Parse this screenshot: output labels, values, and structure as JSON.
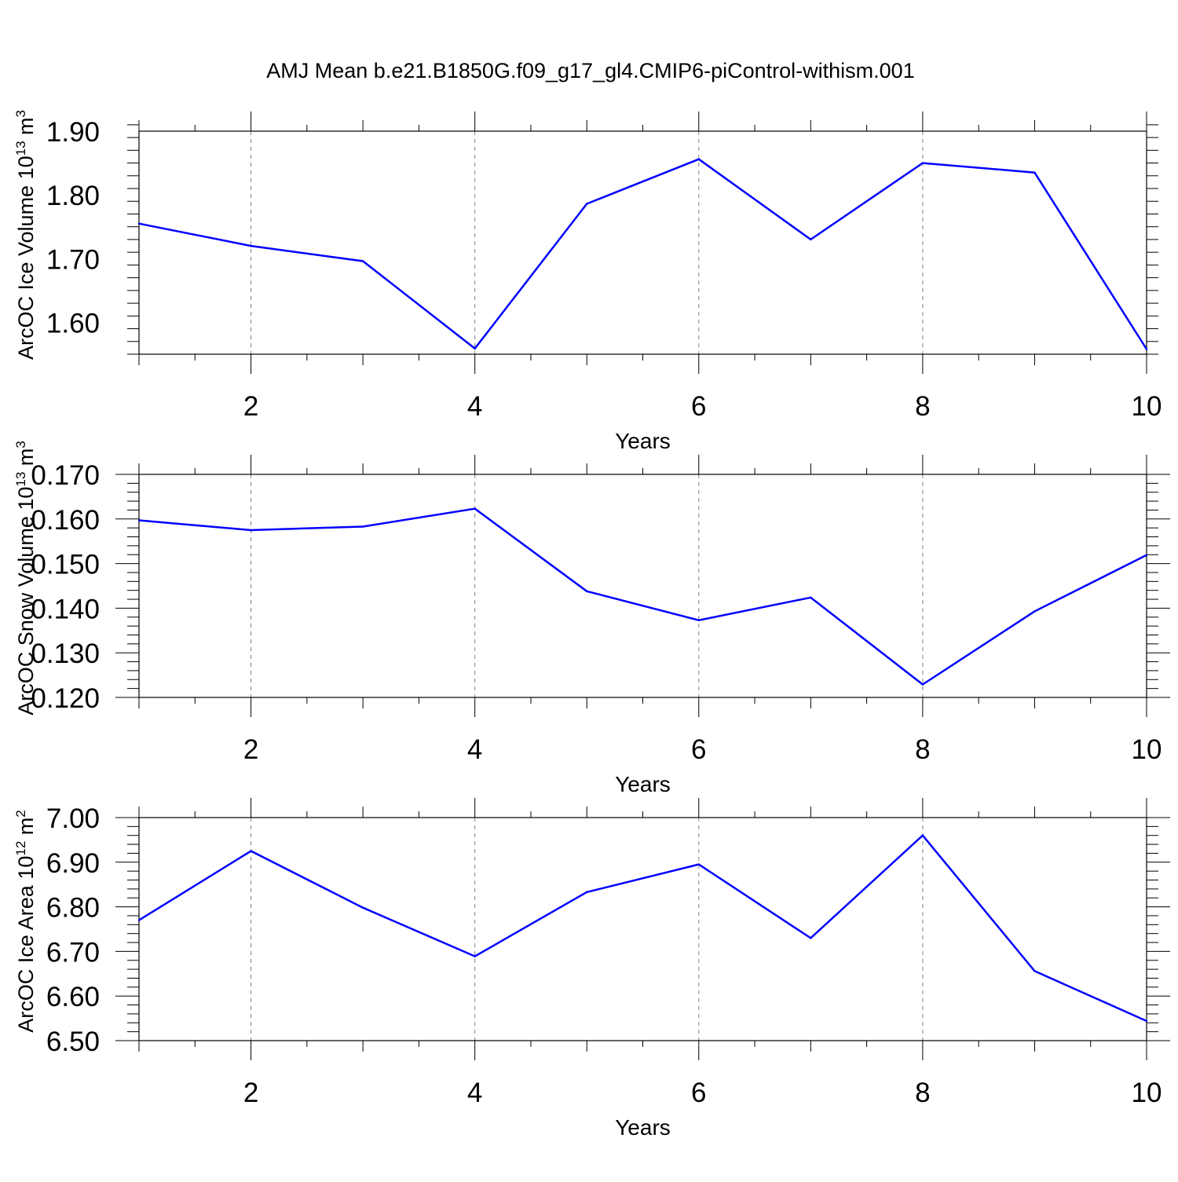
{
  "figure": {
    "title": "AMJ Mean b.e21.B1850G.f09_g17_gl4.CMIP6-piControl-withism.001"
  },
  "colors": {
    "series": "#0000ff",
    "axes": "#000000",
    "grid": "#808080",
    "background": "#ffffff"
  },
  "chart_data": [
    {
      "type": "line",
      "ylabel": {
        "main": "ArcOC Ice Volume 10",
        "sup": "13",
        "unit": " m",
        "unit_sup": "3"
      },
      "xlabel": "Years",
      "xlim": [
        1,
        10
      ],
      "ylim": [
        1.55,
        1.9
      ],
      "xticks": [
        2,
        4,
        6,
        8,
        10
      ],
      "xtick_labels": [
        "2",
        "4",
        "6",
        "8",
        "10"
      ],
      "yticks": [
        1.6,
        1.7,
        1.8,
        1.9
      ],
      "ytick_labels": [
        "1.60",
        "1.70",
        "1.80",
        "1.90"
      ],
      "grid": "vertical dashed at major x ticks",
      "x": [
        1,
        2,
        3,
        4,
        5,
        6,
        7,
        8,
        9,
        10
      ],
      "values": [
        1.755,
        1.72,
        1.696,
        1.559,
        1.786,
        1.856,
        1.73,
        1.85,
        1.835,
        1.558
      ]
    },
    {
      "type": "line",
      "ylabel": {
        "main": "ArcOC Snow Volume 10",
        "sup": "13",
        "unit": " m",
        "unit_sup": "3"
      },
      "xlabel": "Years",
      "xlim": [
        1,
        10
      ],
      "ylim": [
        0.12,
        0.17
      ],
      "xticks": [
        2,
        4,
        6,
        8,
        10
      ],
      "xtick_labels": [
        "2",
        "4",
        "6",
        "8",
        "10"
      ],
      "yticks": [
        0.12,
        0.13,
        0.14,
        0.15,
        0.16,
        0.17
      ],
      "ytick_labels": [
        "0.120",
        "0.130",
        "0.140",
        "0.150",
        "0.160",
        "0.170"
      ],
      "grid": "vertical dashed at major x ticks",
      "x": [
        1,
        2,
        3,
        4,
        5,
        6,
        7,
        8,
        9,
        10
      ],
      "values": [
        0.1597,
        0.1575,
        0.1583,
        0.1623,
        0.1438,
        0.1373,
        0.1424,
        0.1229,
        0.1393,
        0.1519
      ]
    },
    {
      "type": "line",
      "ylabel": {
        "main": "ArcOC Ice Area 10",
        "sup": "12",
        "unit": " m",
        "unit_sup": "2"
      },
      "xlabel": "Years",
      "xlim": [
        1,
        10
      ],
      "ylim": [
        6.5,
        7.0
      ],
      "xticks": [
        2,
        4,
        6,
        8,
        10
      ],
      "xtick_labels": [
        "2",
        "4",
        "6",
        "8",
        "10"
      ],
      "yticks": [
        6.5,
        6.6,
        6.7,
        6.8,
        6.9,
        7.0
      ],
      "ytick_labels": [
        "6.50",
        "6.60",
        "6.70",
        "6.80",
        "6.90",
        "7.00"
      ],
      "grid": "vertical dashed at major x ticks",
      "x": [
        1,
        2,
        3,
        4,
        5,
        6,
        7,
        8,
        9,
        10
      ],
      "values": [
        6.77,
        6.925,
        6.798,
        6.689,
        6.833,
        6.895,
        6.73,
        6.96,
        6.656,
        6.544
      ]
    }
  ]
}
